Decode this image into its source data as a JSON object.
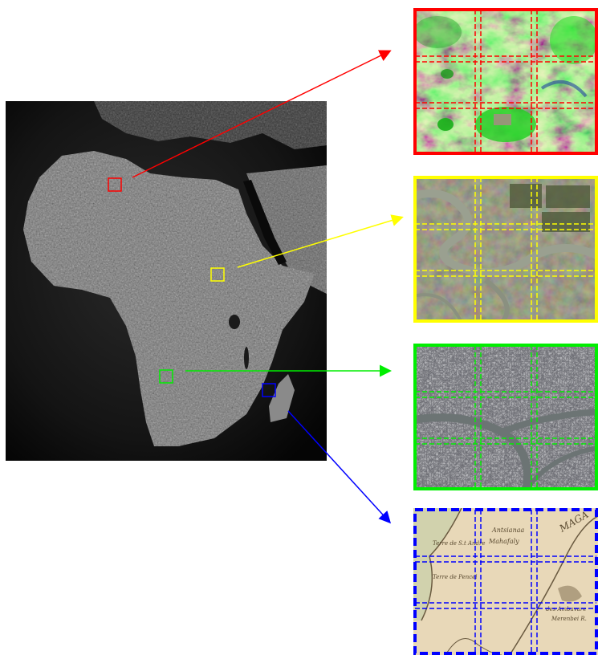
{
  "colors": {
    "red": "#ff0000",
    "yellow": "#ffff00",
    "green": "#00ee00",
    "blue": "#0000ff",
    "map_background": "#050505"
  },
  "patches": [
    {
      "id": "red",
      "color_key": "red",
      "imagery": "multispectral-false-color"
    },
    {
      "id": "yellow",
      "color_key": "yellow",
      "imagery": "river-meander-satellite"
    },
    {
      "id": "green",
      "color_key": "green",
      "imagery": "urban-satellite"
    },
    {
      "id": "blue",
      "color_key": "blue",
      "imagery": "historical-map"
    }
  ],
  "historical_map_text": [
    "Antsianaa",
    "Terre de S.t Andre",
    "Terre de Pencel",
    "Mahafaly",
    "MAGA",
    "des Ambavare",
    "Merenbei R."
  ],
  "grid": {
    "rows": 3,
    "cols": 3,
    "overlap": true
  }
}
